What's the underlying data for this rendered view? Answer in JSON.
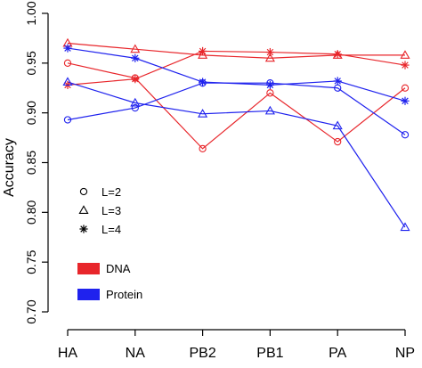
{
  "chart_data": {
    "type": "line",
    "categories": [
      "HA",
      "NA",
      "PB2",
      "PB1",
      "PA",
      "NP"
    ],
    "ylabel": "Accuracy",
    "xlabel": "",
    "ylim": [
      0.7,
      1.0
    ],
    "yticks": [
      "0.70",
      "0.75",
      "0.80",
      "0.85",
      "0.90",
      "0.95",
      "1.00"
    ],
    "grid": false,
    "series": [
      {
        "type": "DNA",
        "L": "L=2",
        "marker": "circle",
        "color": "#e8262b",
        "values": [
          0.95,
          0.935,
          0.864,
          0.92,
          0.871,
          0.925
        ]
      },
      {
        "type": "DNA",
        "L": "L=3",
        "marker": "triangle",
        "color": "#e8262b",
        "values": [
          0.97,
          0.964,
          0.958,
          0.955,
          0.958,
          0.958
        ]
      },
      {
        "type": "DNA",
        "L": "L=4",
        "marker": "star",
        "color": "#e8262b",
        "values": [
          0.928,
          0.934,
          0.962,
          0.961,
          0.959,
          0.948
        ]
      },
      {
        "type": "Protein",
        "L": "L=2",
        "marker": "circle",
        "color": "#1f22ee",
        "values": [
          0.893,
          0.905,
          0.93,
          0.93,
          0.925,
          0.878
        ]
      },
      {
        "type": "Protein",
        "L": "L=3",
        "marker": "triangle",
        "color": "#1f22ee",
        "values": [
          0.931,
          0.91,
          0.899,
          0.902,
          0.887,
          0.785
        ]
      },
      {
        "type": "Protein",
        "L": "L=4",
        "marker": "star",
        "color": "#1f22ee",
        "values": [
          0.965,
          0.955,
          0.931,
          0.928,
          0.932,
          0.912
        ]
      }
    ],
    "legend": {
      "markers": [
        {
          "label": "L=2",
          "marker": "circle"
        },
        {
          "label": "L=3",
          "marker": "triangle"
        },
        {
          "label": "L=4",
          "marker": "star"
        }
      ],
      "colors": [
        {
          "label": "DNA",
          "color": "#e8262b"
        },
        {
          "label": "Protein",
          "color": "#1f22ee"
        }
      ]
    }
  }
}
